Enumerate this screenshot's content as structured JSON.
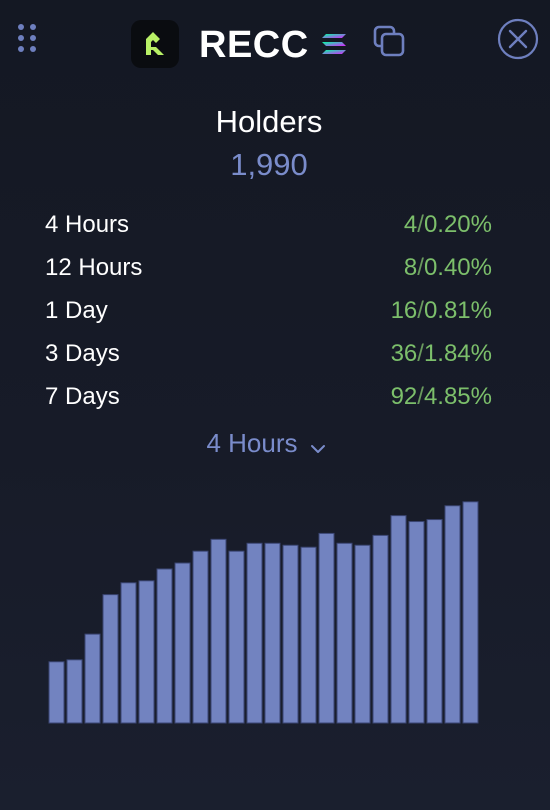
{
  "header": {
    "token_symbol": "RECC",
    "icons": {
      "drag": "drag-handle-icon",
      "logo": "token-logo-icon",
      "chain": "solana-chain-icon",
      "copy": "copy-icon",
      "close": "close-icon"
    },
    "colors": {
      "logo_accent": "#b8f066",
      "ui_accent": "#6e7fbf"
    }
  },
  "holders": {
    "title": "Holders",
    "count": "1,990"
  },
  "stats": [
    {
      "label": "4 Hours",
      "count": "4",
      "percent": "0.20%"
    },
    {
      "label": "12 Hours",
      "count": "8",
      "percent": "0.40%"
    },
    {
      "label": "1 Day",
      "count": "16",
      "percent": "0.81%"
    },
    {
      "label": "3 Days",
      "count": "36",
      "percent": "1.84%"
    },
    {
      "label": "7 Days",
      "count": "92",
      "percent": "4.85%"
    }
  ],
  "period_selector": {
    "selected": "4 Hours"
  },
  "chart_data": {
    "type": "bar",
    "bar_color": "#7283c0",
    "values": [
      1901,
      1902,
      1915,
      1935,
      1941,
      1942,
      1948,
      1951,
      1957,
      1963,
      1957,
      1961,
      1961,
      1960,
      1959,
      1966,
      1961,
      1960,
      1965,
      1975,
      1972,
      1973,
      1980,
      1982
    ],
    "ylim": [
      1870,
      1990
    ]
  }
}
